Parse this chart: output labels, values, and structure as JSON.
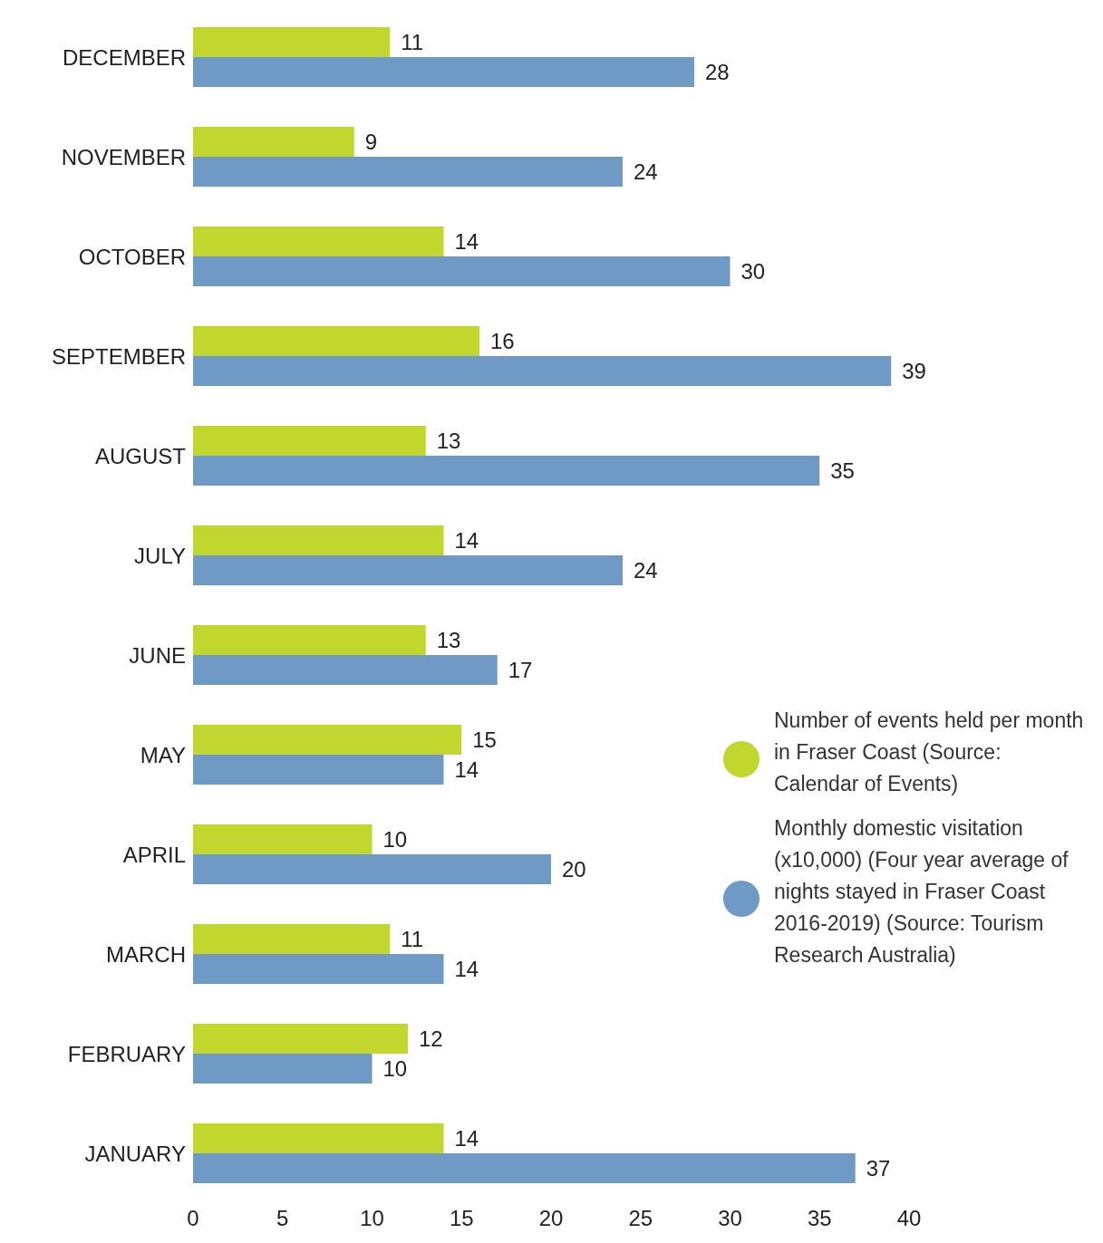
{
  "chart_data": {
    "type": "bar",
    "orientation": "horizontal",
    "categories": [
      "DECEMBER",
      "NOVEMBER",
      "OCTOBER",
      "SEPTEMBER",
      "AUGUST",
      "JULY",
      "JUNE",
      "MAY",
      "APRIL",
      "MARCH",
      "FEBRUARY",
      "JANUARY"
    ],
    "series": [
      {
        "name": "Number of events held per month in Fraser Coast (Source: Calendar of Events)",
        "color": "#c2d72e",
        "values": [
          11,
          9,
          14,
          16,
          13,
          14,
          13,
          15,
          10,
          11,
          12,
          14
        ]
      },
      {
        "name": "Monthly domestic visitation (x10,000) (Four year average of nights stayed in Fraser Coast 2016-2019) (Source: Tourism Research Australia)",
        "color": "#6f9ac6",
        "values": [
          28,
          24,
          30,
          39,
          35,
          24,
          17,
          14,
          20,
          14,
          10,
          37
        ]
      }
    ],
    "xlim": [
      0,
      40
    ],
    "xticks": [
      0,
      5,
      10,
      15,
      20,
      25,
      30,
      35,
      40
    ],
    "data_labels": true,
    "grid": false,
    "legend": "right"
  }
}
